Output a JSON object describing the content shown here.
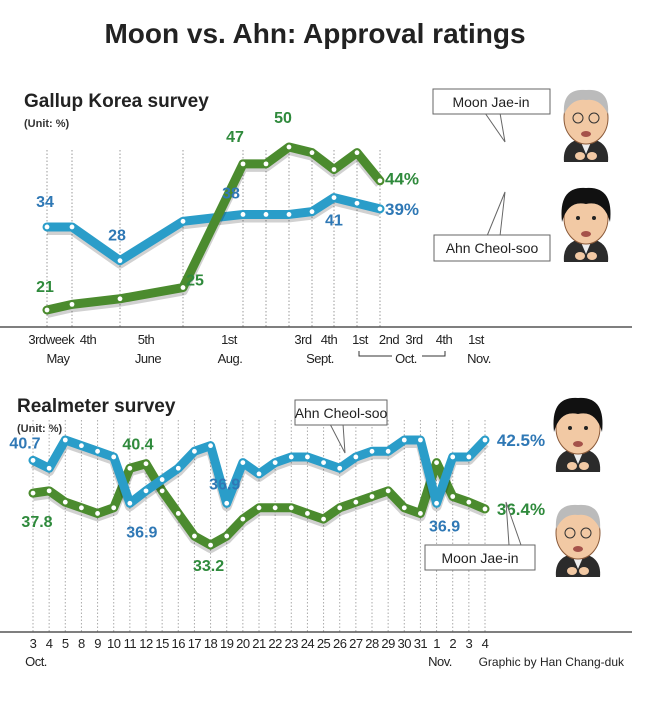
{
  "title": "Moon vs. Ahn: Approval ratings",
  "colors": {
    "moon_line": "#4b8b2e",
    "ahn_line": "#2a9dc9",
    "moon_text": "#2f8a3c",
    "ahn_text": "#2f78b5"
  },
  "chart_data": [
    {
      "type": "line",
      "title": "Gallup Korea survey",
      "unit": "(Unit: %)",
      "categories": [
        "3rd week May",
        "4th",
        "5th June",
        "1st Aug.",
        "3rd Sept.",
        "4th",
        "1st Oct.",
        "2nd",
        "3rd",
        "4th",
        "1st Nov."
      ],
      "tick_labels": [
        "3rd",
        "week",
        "4th",
        "5th",
        "1st",
        "3rd",
        "4th",
        "1st",
        "2nd",
        "3rd",
        "4th",
        "1st"
      ],
      "month_labels": [
        "May",
        "June",
        "Aug.",
        "Sept.",
        "Oct.",
        "Nov."
      ],
      "series": [
        {
          "name": "Moon Jae-in",
          "values": [
            21,
            22,
            23,
            25,
            47,
            47,
            50,
            49,
            46,
            49,
            44
          ]
        },
        {
          "name": "Ahn Cheol-soo",
          "values": [
            34,
            34,
            28,
            35,
            38,
            38,
            38,
            38.5,
            41,
            40,
            39
          ]
        }
      ],
      "data_labels": {
        "moon": [
          {
            "index": 0,
            "text": "21"
          },
          {
            "index": 3,
            "text": "25"
          },
          {
            "index": 4,
            "text": "47"
          },
          {
            "index": 6,
            "text": "50"
          },
          {
            "index": 10,
            "text": "44%"
          }
        ],
        "ahn": [
          {
            "index": 0,
            "text": "34"
          },
          {
            "index": 2,
            "text": "28"
          },
          {
            "index": 4,
            "text": "38"
          },
          {
            "index": 8,
            "text": "41"
          },
          {
            "index": 10,
            "text": "39%"
          }
        ]
      },
      "callouts": {
        "moon": "Moon Jae-in",
        "ahn": "Ahn Cheol-soo"
      },
      "ylim": [
        15,
        55
      ],
      "grid": "vertical dotted"
    },
    {
      "type": "line",
      "title": "Realmeter survey",
      "unit": "(Unit: %)",
      "categories": [
        "3",
        "4",
        "5",
        "8",
        "9",
        "10",
        "11",
        "12",
        "15",
        "16",
        "17",
        "18",
        "19",
        "20",
        "21",
        "22",
        "23",
        "24",
        "25",
        "26",
        "27",
        "28",
        "29",
        "30",
        "31",
        "1",
        "2",
        "3",
        "4"
      ],
      "month_labels": [
        "Oct.",
        "Nov."
      ],
      "series": [
        {
          "name": "Ahn Cheol-soo",
          "values": [
            40.7,
            40.0,
            42.5,
            42.0,
            41.5,
            41.0,
            36.9,
            38.0,
            39.0,
            40.0,
            41.5,
            42.0,
            36.9,
            40.5,
            39.5,
            40.5,
            41.0,
            41.0,
            40.5,
            40.0,
            41.0,
            41.5,
            41.5,
            42.5,
            42.5,
            36.9,
            41.0,
            41.0,
            42.5
          ]
        },
        {
          "name": "Moon Jae-in",
          "values": [
            37.8,
            38.0,
            37.0,
            36.5,
            36.0,
            36.5,
            40.0,
            40.4,
            38.0,
            36.0,
            34.0,
            33.2,
            34.0,
            35.5,
            36.5,
            36.5,
            36.5,
            36.0,
            35.5,
            36.5,
            37.0,
            37.5,
            38.0,
            36.5,
            36.0,
            40.5,
            37.5,
            37.0,
            36.4
          ]
        }
      ],
      "data_labels": {
        "ahn": [
          {
            "index": 0,
            "text": "40.7"
          },
          {
            "index": 6,
            "text": "36.9"
          },
          {
            "index": 12,
            "text": "36.9"
          },
          {
            "index": 25,
            "text": "36.9"
          },
          {
            "index": 28,
            "text": "42.5%"
          }
        ],
        "moon": [
          {
            "index": 0,
            "text": "37.8"
          },
          {
            "index": 7,
            "text": "40.4"
          },
          {
            "index": 11,
            "text": "33.2"
          },
          {
            "index": 28,
            "text": "36.4%"
          }
        ]
      },
      "callouts": {
        "ahn": "Ahn Cheol-soo",
        "moon": "Moon Jae-in"
      },
      "ylim": [
        30,
        46
      ],
      "grid": "vertical dotted"
    }
  ],
  "credit": "Graphic by Han Chang-duk"
}
